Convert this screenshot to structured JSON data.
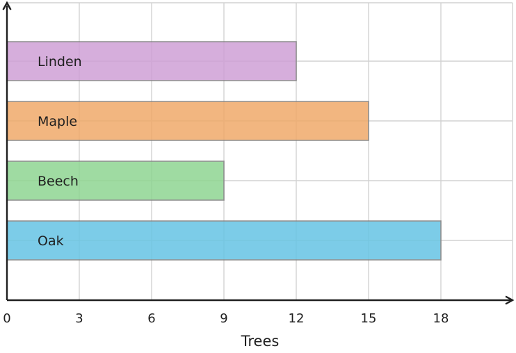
{
  "chart_data": {
    "type": "bar",
    "orientation": "horizontal",
    "categories": [
      "Linden",
      "Maple",
      "Beech",
      "Oak"
    ],
    "values": [
      12,
      15,
      9,
      18
    ],
    "colors": [
      "#cfa0d6",
      "#f0aa6a",
      "#8fd592",
      "#66c4e4"
    ],
    "title": "",
    "xlabel": "Trees",
    "ylabel": "",
    "xlim": [
      0,
      21
    ],
    "xticks": [
      "0",
      "3",
      "6",
      "9",
      "12",
      "15",
      "18"
    ],
    "grid": true,
    "category_labels_inside_bars": true
  }
}
